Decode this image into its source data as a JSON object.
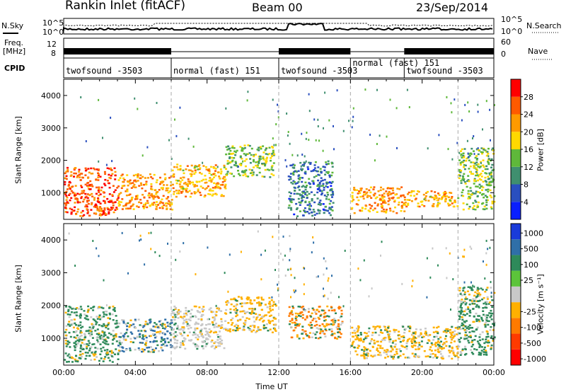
{
  "header": {
    "station": "Rankin Inlet (fitACF)",
    "beam": "Beam 00",
    "date": "23/Sep/2014"
  },
  "strips": {
    "nsky_label": "N.Sky",
    "nsearch_label": "N.Search",
    "freq_label_line1": "Freq.",
    "freq_label_line2": "[MHz]",
    "nave_label": "Nave",
    "cpid_label": "CPID",
    "noise_ticks_left": [
      "10^5",
      "10^0"
    ],
    "noise_ticks_right": [
      "10^5",
      "10^0"
    ],
    "freq_ticks_left": [
      "12",
      "8"
    ],
    "nave_ticks_right": [
      "60",
      "0"
    ]
  },
  "cpid_segments": [
    {
      "label": "twofsound -3503",
      "start": 0,
      "end": 6
    },
    {
      "label": "normal (fast) 151",
      "start": 6,
      "end": 12
    },
    {
      "label": "twofsound -3503",
      "start": 12,
      "end": 16
    },
    {
      "label": "normal (fast) 151",
      "start": 16,
      "end": 19
    },
    {
      "label": "twofsound -3503",
      "start": 19,
      "end": 24
    }
  ],
  "chart_data": [
    {
      "type": "heatmap",
      "name_key": "power",
      "xlabel": "",
      "ylabel": "Slant Range [km]",
      "xlim": [
        0,
        24
      ],
      "ylim": [
        180,
        4500
      ],
      "yticks": [
        1000,
        2000,
        3000,
        4000
      ],
      "colorbar_label": "Power [dB]",
      "colorbar_ticks": [
        "4",
        "8",
        "12",
        "16",
        "20",
        "24",
        "28"
      ],
      "colorbar_colors": [
        "#0a1fff",
        "#2a4fbf",
        "#3f8f6f",
        "#5fb83a",
        "#ffd800",
        "#ff9a00",
        "#ff5a00",
        "#ff0000"
      ],
      "echo_regions": [
        {
          "t0": 0.0,
          "t1": 3.0,
          "r0": 300,
          "r1": 1800,
          "level": 26
        },
        {
          "t0": 3.0,
          "t1": 6.0,
          "r0": 500,
          "r1": 1600,
          "level": 22
        },
        {
          "t0": 6.0,
          "t1": 9.0,
          "r0": 900,
          "r1": 1900,
          "level": 20
        },
        {
          "t0": 9.0,
          "t1": 11.7,
          "r0": 1500,
          "r1": 2500,
          "level": 14
        },
        {
          "t0": 12.5,
          "t1": 15.0,
          "r0": 300,
          "r1": 2000,
          "level": 8
        },
        {
          "t0": 16.0,
          "t1": 19.0,
          "r0": 400,
          "r1": 1200,
          "level": 22
        },
        {
          "t0": 19.0,
          "t1": 22.0,
          "r0": 600,
          "r1": 1100,
          "level": 20
        },
        {
          "t0": 22.0,
          "t1": 24.0,
          "r0": 500,
          "r1": 2400,
          "level": 14
        }
      ]
    },
    {
      "type": "heatmap",
      "name_key": "velocity",
      "xlabel": "Time UT",
      "ylabel": "Slant Range [km]",
      "xlim": [
        0,
        24
      ],
      "ylim": [
        180,
        4500
      ],
      "xticks": [
        "00:00",
        "04:00",
        "08:00",
        "12:00",
        "16:00",
        "20:00",
        "00:00"
      ],
      "yticks": [
        1000,
        2000,
        3000,
        4000
      ],
      "colorbar_label": "Velocity [m s⁻¹]",
      "colorbar_ticks": [
        "1000",
        "500",
        "100",
        "25",
        "-25",
        "-100",
        "-500",
        "-1000"
      ],
      "colorbar_colors": [
        "#1a3bd9",
        "#2f6fa8",
        "#2e8a5a",
        "#5cc43a",
        "#c8c8c8",
        "#ffb000",
        "#ff7a00",
        "#ff3a00",
        "#ff0000"
      ],
      "echo_regions": [
        {
          "t0": 0.0,
          "t1": 3.0,
          "r0": 300,
          "r1": 2000,
          "velocity": 100
        },
        {
          "t0": 3.0,
          "t1": 6.0,
          "r0": 600,
          "r1": 1600,
          "velocity": 500
        },
        {
          "t0": 6.0,
          "t1": 9.0,
          "r0": 700,
          "r1": 2000,
          "velocity": 25
        },
        {
          "t0": 9.0,
          "t1": 11.8,
          "r0": 1200,
          "r1": 2300,
          "velocity": -100
        },
        {
          "t0": 12.5,
          "t1": 15.5,
          "r0": 1000,
          "r1": 2000,
          "velocity": -500
        },
        {
          "t0": 16.0,
          "t1": 22.0,
          "r0": 400,
          "r1": 1400,
          "velocity": -100
        },
        {
          "t0": 22.0,
          "t1": 24.0,
          "r0": 500,
          "r1": 2600,
          "velocity": 100
        }
      ]
    }
  ]
}
